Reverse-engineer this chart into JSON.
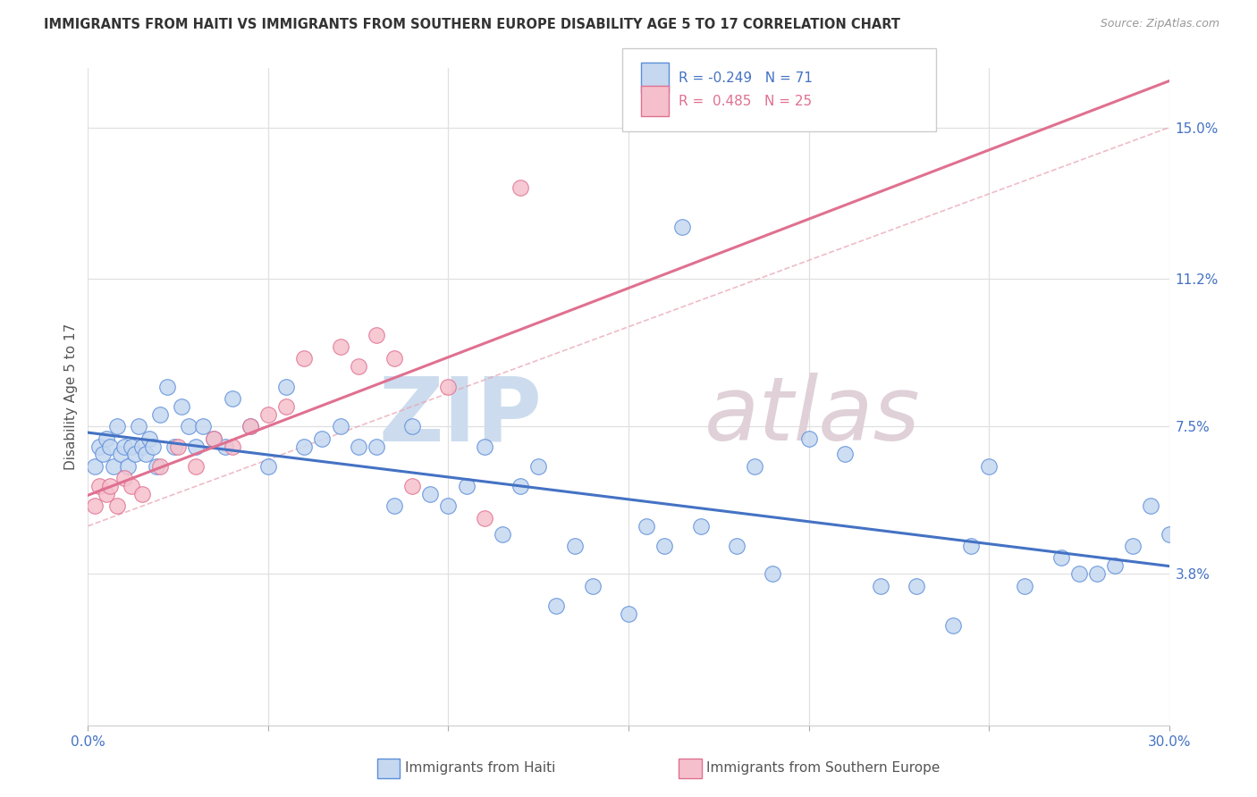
{
  "title": "IMMIGRANTS FROM HAITI VS IMMIGRANTS FROM SOUTHERN EUROPE DISABILITY AGE 5 TO 17 CORRELATION CHART",
  "source": "Source: ZipAtlas.com",
  "ylabel": "Disability Age 5 to 17",
  "y_tick_labels": [
    "3.8%",
    "7.5%",
    "11.2%",
    "15.0%"
  ],
  "y_tick_values": [
    3.8,
    7.5,
    11.2,
    15.0
  ],
  "x_range": [
    0.0,
    30.0
  ],
  "y_range": [
    0.0,
    16.5
  ],
  "haiti_R": -0.249,
  "haiti_N": 71,
  "southern_europe_R": 0.485,
  "southern_europe_N": 25,
  "haiti_face_color": "#c5d8f0",
  "haiti_edge_color": "#5b8dd9",
  "southern_face_color": "#f5c0cc",
  "southern_edge_color": "#e07090",
  "haiti_line_color": "#4472c4",
  "southern_line_color": "#e07090",
  "ref_line_color": "#e8a0b0",
  "background_color": "#ffffff",
  "grid_color": "#e0e0e0",
  "title_color": "#333333",
  "right_tick_color": "#4472c4",
  "haiti_x": [
    0.2,
    0.3,
    0.4,
    0.5,
    0.6,
    0.7,
    0.8,
    0.9,
    1.0,
    1.1,
    1.2,
    1.3,
    1.4,
    1.5,
    1.6,
    1.7,
    1.8,
    1.9,
    2.0,
    2.2,
    2.4,
    2.6,
    2.8,
    3.0,
    3.2,
    3.5,
    3.8,
    4.0,
    4.5,
    5.0,
    5.5,
    6.0,
    6.5,
    7.0,
    7.5,
    8.0,
    8.5,
    9.0,
    9.5,
    10.0,
    10.5,
    11.0,
    11.5,
    12.0,
    12.5,
    13.0,
    13.5,
    14.0,
    15.0,
    15.5,
    16.0,
    17.0,
    18.0,
    18.5,
    19.0,
    20.0,
    21.0,
    22.0,
    23.0,
    24.0,
    24.5,
    25.0,
    26.0,
    27.0,
    27.5,
    28.0,
    28.5,
    29.0,
    29.5,
    30.0,
    16.5
  ],
  "haiti_y": [
    6.5,
    7.0,
    6.8,
    7.2,
    7.0,
    6.5,
    7.5,
    6.8,
    7.0,
    6.5,
    7.0,
    6.8,
    7.5,
    7.0,
    6.8,
    7.2,
    7.0,
    6.5,
    7.8,
    8.5,
    7.0,
    8.0,
    7.5,
    7.0,
    7.5,
    7.2,
    7.0,
    8.2,
    7.5,
    6.5,
    8.5,
    7.0,
    7.2,
    7.5,
    7.0,
    7.0,
    5.5,
    7.5,
    5.8,
    5.5,
    6.0,
    7.0,
    4.8,
    6.0,
    6.5,
    3.0,
    4.5,
    3.5,
    2.8,
    5.0,
    4.5,
    5.0,
    4.5,
    6.5,
    3.8,
    7.2,
    6.8,
    3.5,
    3.5,
    2.5,
    4.5,
    6.5,
    3.5,
    4.2,
    3.8,
    3.8,
    4.0,
    4.5,
    5.5,
    4.8,
    12.5
  ],
  "se_x": [
    0.2,
    0.3,
    0.5,
    0.6,
    0.8,
    1.0,
    1.2,
    1.5,
    2.0,
    2.5,
    3.0,
    3.5,
    4.0,
    4.5,
    5.0,
    5.5,
    6.0,
    7.0,
    7.5,
    8.0,
    8.5,
    9.0,
    10.0,
    11.0,
    12.0
  ],
  "se_y": [
    5.5,
    6.0,
    5.8,
    6.0,
    5.5,
    6.2,
    6.0,
    5.8,
    6.5,
    7.0,
    6.5,
    7.2,
    7.0,
    7.5,
    7.8,
    8.0,
    9.2,
    9.5,
    9.0,
    9.8,
    9.2,
    6.0,
    8.5,
    5.2,
    13.5
  ]
}
